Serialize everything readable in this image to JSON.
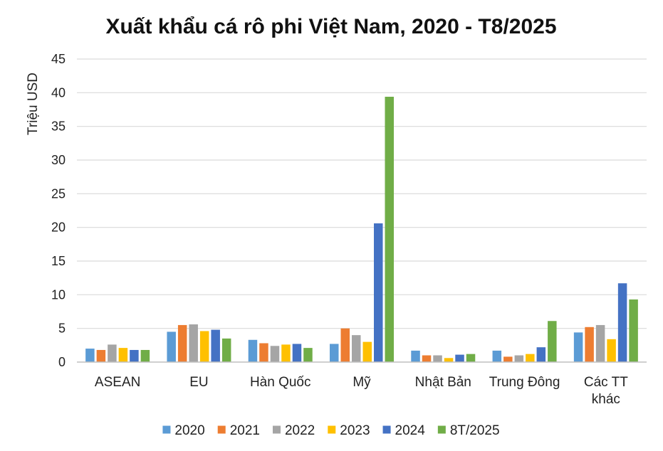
{
  "chart_data": {
    "type": "bar",
    "title": "Xuất khẩu cá rô phi Việt Nam, 2020 - T8/2025",
    "ylabel": "Triệu USD",
    "xlabel": "",
    "ylim": [
      0,
      45
    ],
    "yticks": [
      "0",
      "5",
      "10",
      "15",
      "20",
      "25",
      "30",
      "35",
      "40",
      "45"
    ],
    "grid": true,
    "legend_position": "bottom",
    "categories": [
      [
        "ASEAN"
      ],
      [
        "EU"
      ],
      [
        "Hàn Quốc"
      ],
      [
        "Mỹ"
      ],
      [
        "Nhật Bản"
      ],
      [
        "Trung Đông"
      ],
      [
        "Các TT",
        "khác"
      ]
    ],
    "series": [
      {
        "name": "2020",
        "color": "#5B9BD5",
        "values": [
          2.0,
          4.5,
          3.3,
          2.7,
          1.7,
          1.7,
          4.4
        ]
      },
      {
        "name": "2021",
        "color": "#ED7D31",
        "values": [
          1.8,
          5.5,
          2.8,
          5.0,
          1.0,
          0.8,
          5.2
        ]
      },
      {
        "name": "2022",
        "color": "#A5A5A5",
        "values": [
          2.6,
          5.6,
          2.4,
          4.0,
          1.0,
          1.0,
          5.5
        ]
      },
      {
        "name": "2023",
        "color": "#FFC000",
        "values": [
          2.1,
          4.6,
          2.6,
          3.0,
          0.6,
          1.2,
          3.4
        ]
      },
      {
        "name": "2024",
        "color": "#4472C4",
        "values": [
          1.8,
          4.8,
          2.7,
          20.6,
          1.1,
          2.2,
          11.7
        ]
      },
      {
        "name": "8T/2025",
        "color": "#70AD47",
        "values": [
          1.8,
          3.5,
          2.1,
          39.4,
          1.2,
          6.1,
          9.3
        ]
      }
    ]
  }
}
